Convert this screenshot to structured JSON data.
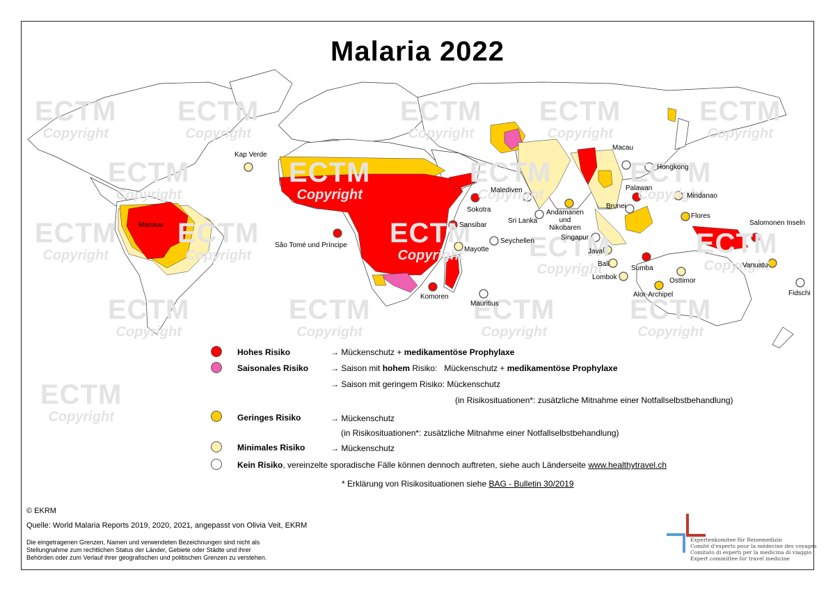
{
  "title": "Malaria 2022",
  "watermark": {
    "line1": "ECTM",
    "line2": "Copyright"
  },
  "colors": {
    "high": "#ff0000",
    "seasonal": "#f060b0",
    "low": "#ffcc00",
    "minimal": "#fff2b0",
    "none": "#ffffff",
    "border": "#333333"
  },
  "labels": {
    "kap_verde": "Kap Verde",
    "manaus": "Manaus",
    "sao_tome": "São Tomé und Príncipe",
    "sokotra": "Sokotra",
    "sansibar": "Sansibar",
    "mayotte": "Mayotte",
    "seychellen": "Seychellen",
    "komoren": "Komoren",
    "mauritius": "Mauritius",
    "malediven": "Malediven",
    "sri_lanka": "Sri Lanka",
    "andamanen_1": "Andamanen",
    "andamanen_2": "und",
    "andamanen_3": "Nikobaren",
    "singapur": "Singapur",
    "macau": "Macau",
    "hongkong": "Hongkong",
    "palawan": "Palawan",
    "mindanao": "Mindanao",
    "brunei": "Brunei",
    "flores": "Flores",
    "java": "Java",
    "bali": "Bali",
    "lombok": "Lombok",
    "sumba": "Sumba",
    "osttimor": "Osttimor",
    "alor": "Alor-Archipel",
    "salomonen": "Salomonen Inseln",
    "vanuatu": "Vanuatu",
    "fidschi": "Fidschi"
  },
  "legend": {
    "high": {
      "name": "Hohes Risiko",
      "arrow": "→ Mückenschutz + ",
      "bold": "medikamentöse Prophylaxe"
    },
    "seasonal": {
      "name": "Saisonales Risiko",
      "line1_a": "→ Saison mit ",
      "line1_b": "hohem",
      "line1_c": " Risiko:   Mückenschutz + ",
      "line1_d": "medikamentöse Prophylaxe",
      "line2": "→ Saison mit geringem Risiko: Mückenschutz",
      "line3": "(in Risikosituationen*: zusätzliche Mitnahme einer Notfallselbstbehandlung)"
    },
    "low": {
      "name": "Geringes Risiko",
      "line1": "→ Mückenschutz",
      "line2": "(in Risikosituationen*: zusätzliche Mitnahme einer Notfallselbstbehandlung)"
    },
    "minimal": {
      "name": "Minimales Risiko",
      "line1": "→ Mückenschutz"
    },
    "none": {
      "name": "Kein Risiko",
      "rest": ", vereinzelte sporadische Fälle können dennoch auftreten, siehe auch Länderseite ",
      "link": "www.healthytravel.ch"
    },
    "footnote": {
      "text": "* Erklärung von Risikosituationen siehe ",
      "link": "BAG - Bulletin 30/2019"
    }
  },
  "footer": {
    "copyright": "© EKRM",
    "source": "Quelle: World Malaria Reports 2019, 2020, 2021, angepasst von Olivia Veit, EKRM",
    "disclaimer_1": "Die eingetragenen Grenzen, Namen und verwendeten Bezeichnungen sind nicht als",
    "disclaimer_2": "Stellungnahme zum rechtlichen Status der Länder, Gebiete oder Städte und ihrer",
    "disclaimer_3": "Behörden oder zum Verlauf ihrer geografischen und politischen Grenzen zu verstehen."
  },
  "logo": {
    "line1": "Expertenkomitee für Reisemedizin",
    "line2": "Comité d'experts pour la médecine des voyages",
    "line3": "Comitato di esperti per la medicina di viaggio",
    "line4": "Expert committee for travel medicine",
    "color_red": "#c0392b",
    "color_blue": "#5b9bd5"
  }
}
